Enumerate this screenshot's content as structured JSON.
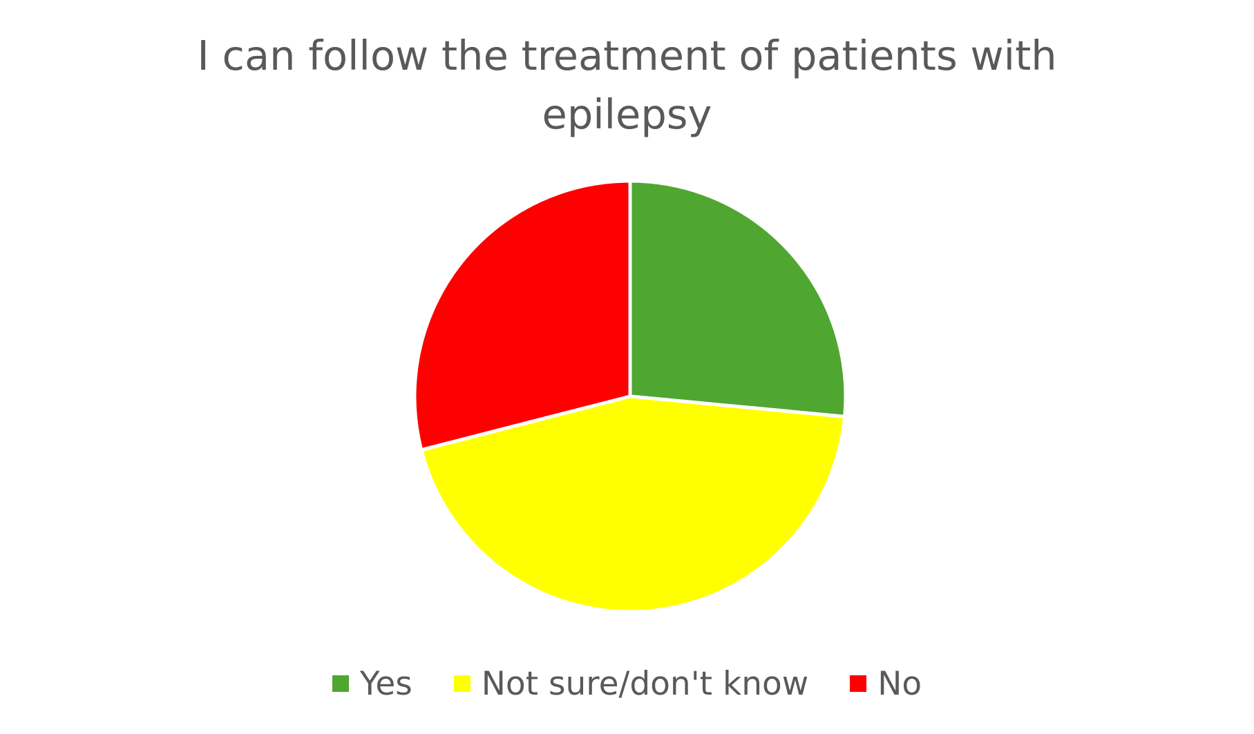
{
  "chart_data": {
    "type": "pie",
    "title": "I can follow the treatment of patients with epilepsy",
    "categories": [
      "Yes",
      "Not sure/don't know",
      "No"
    ],
    "values": [
      26.5,
      44.5,
      29.0
    ],
    "colors": [
      "#4fa630",
      "#ffff00",
      "#ff0000"
    ],
    "start_angle_deg": 0,
    "direction": "clockwise",
    "legend": "bottom"
  }
}
